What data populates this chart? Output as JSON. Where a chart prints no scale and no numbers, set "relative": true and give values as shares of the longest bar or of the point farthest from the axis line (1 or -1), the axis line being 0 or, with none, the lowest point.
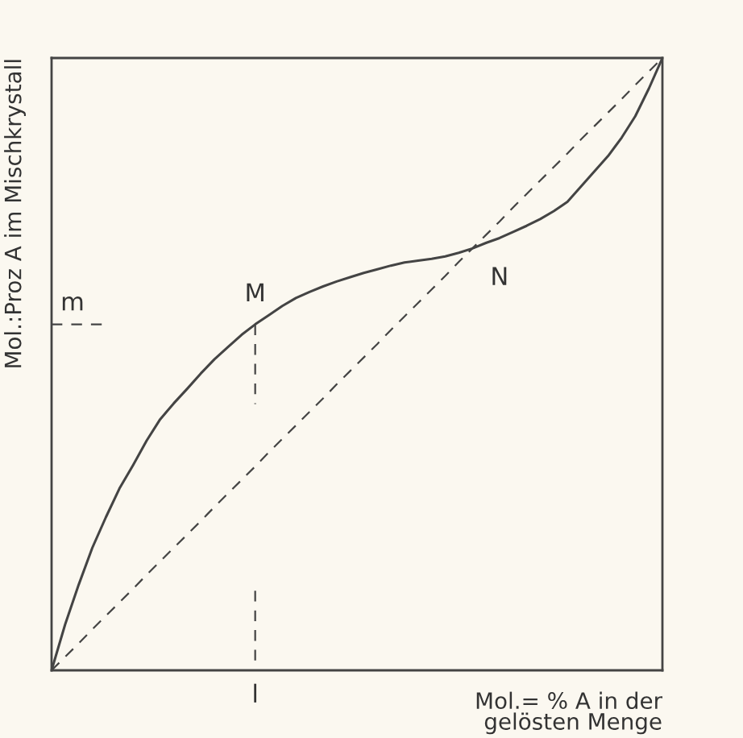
{
  "chart_data": {
    "type": "line",
    "relative": true,
    "xlabel": "Mol.= % A in der\ngelösten Menge",
    "ylabel": "Mol.:Proz A im Mischkrystall",
    "categories": [
      null,
      null,
      null,
      null,
      null,
      null,
      null,
      null,
      null,
      null,
      null,
      null,
      null,
      null,
      null,
      null,
      null,
      null,
      null,
      null,
      null,
      null,
      null,
      null,
      null,
      null,
      null,
      null,
      null,
      null,
      null,
      null,
      null,
      null,
      null,
      null,
      null,
      null,
      null,
      null,
      null,
      null,
      null,
      null,
      null,
      null
    ],
    "series": [
      {
        "color": "#444444",
        "line_style": "solid",
        "values": [
          0,
          0.075,
          0.14,
          0.2,
          0.25,
          0.297,
          0.335,
          0.375,
          0.41,
          0.436,
          0.46,
          0.485,
          0.508,
          0.528,
          0.548,
          0.565,
          0.58,
          0.595,
          0.608,
          0.618,
          0.627,
          0.635,
          0.642,
          0.649,
          0.655,
          0.661,
          0.666,
          0.669,
          0.672,
          0.676,
          0.682,
          0.689,
          0.698,
          0.706,
          0.716,
          0.726,
          0.737,
          0.75,
          0.765,
          0.79,
          0.815,
          0.84,
          0.87,
          0.905,
          0.95,
          1
        ]
      },
      {
        "color": "#444444",
        "line_style": "dashed",
        "values": [
          0,
          0.022,
          0.044,
          0.067,
          0.089,
          0.111,
          0.133,
          0.156,
          0.178,
          0.2,
          0.222,
          0.244,
          0.267,
          0.289,
          0.311,
          0.333,
          0.356,
          0.378,
          0.4,
          0.422,
          0.444,
          0.467,
          0.489,
          0.511,
          0.533,
          0.556,
          0.578,
          0.6,
          0.622,
          0.644,
          0.667,
          0.689,
          0.711,
          0.733,
          0.756,
          0.778,
          0.8,
          0.822,
          0.844,
          0.867,
          0.889,
          0.911,
          0.933,
          0.956,
          0.978,
          1
        ]
      },
      {
        "color": "#444444",
        "line_style": "dashed",
        "values": [
          0.565,
          0.565,
          0.565,
          0.565,
          0.565,
          null,
          null,
          null,
          null,
          null,
          null,
          null,
          null,
          null,
          null,
          null,
          null,
          null,
          null,
          null,
          null,
          null,
          null,
          null,
          null,
          null,
          null,
          null,
          null,
          null,
          null,
          null,
          null,
          null,
          null,
          null,
          null,
          null,
          null,
          null,
          null,
          null,
          null,
          null,
          null,
          null
        ]
      }
    ],
    "annotations": [
      {
        "text": "M",
        "y": 0.565
      },
      "N",
      "m",
      "l"
    ]
  }
}
